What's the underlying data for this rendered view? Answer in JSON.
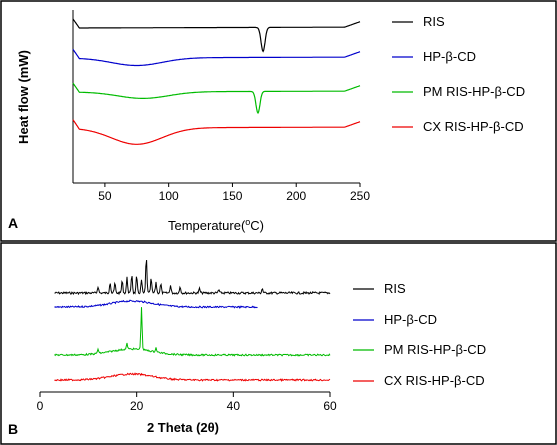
{
  "chart_data": [
    {
      "panel": "A",
      "type": "line",
      "xlabel_text": "Temperature(",
      "xlabel_sup": "o",
      "xlabel_unit": "C)",
      "ylabel": "Heat flow (mW)",
      "xlim": [
        25,
        250
      ],
      "xticks": [
        50,
        100,
        150,
        200,
        250
      ],
      "yticks_shown": false,
      "legend_position": "right",
      "series": [
        {
          "name": "RIS",
          "color": "#000000",
          "offset": 0,
          "features": [
            {
              "type": "endotherm-sharp",
              "x": 174,
              "depth": 1.0
            }
          ]
        },
        {
          "name": "HP-β-CD",
          "color": "#0000cc",
          "offset": 1,
          "features": [
            {
              "type": "endotherm-broad",
              "x": 75,
              "depth": 0.35
            }
          ]
        },
        {
          "name": "PM RIS-HP-β-CD",
          "color": "#00bb00",
          "offset": 2,
          "features": [
            {
              "type": "endotherm-broad",
              "x": 80,
              "depth": 0.3
            },
            {
              "type": "endotherm-sharp",
              "x": 170,
              "depth": 0.9
            }
          ]
        },
        {
          "name": "CX RIS-HP-β-CD",
          "color": "#ee0000",
          "offset": 3,
          "features": [
            {
              "type": "endotherm-broad",
              "x": 75,
              "depth": 0.75
            }
          ]
        }
      ]
    },
    {
      "panel": "B",
      "type": "line",
      "xlabel": "2 Theta (2θ)",
      "xlim": [
        0,
        60
      ],
      "xticks": [
        0,
        20,
        40,
        60
      ],
      "yticks_shown": false,
      "legend_position": "right",
      "series": [
        {
          "name": "RIS",
          "color": "#000000",
          "offset": 0,
          "x_range": [
            3,
            60
          ],
          "peaks": [
            [
              12,
              0.3
            ],
            [
              14.5,
              0.5
            ],
            [
              15.5,
              0.45
            ],
            [
              17,
              0.55
            ],
            [
              18,
              0.7
            ],
            [
              19,
              0.85
            ],
            [
              20,
              0.75
            ],
            [
              21,
              0.6
            ],
            [
              22,
              1.6
            ],
            [
              23,
              0.65
            ],
            [
              24,
              0.5
            ],
            [
              25,
              0.4
            ],
            [
              27,
              0.35
            ],
            [
              29,
              0.3
            ],
            [
              33,
              0.2
            ],
            [
              37,
              0.15
            ],
            [
              46,
              0.2
            ]
          ]
        },
        {
          "name": "HP-β-CD",
          "color": "#0000cc",
          "offset": 1,
          "x_range": [
            3,
            45
          ],
          "peaks": []
        },
        {
          "name": "PM RIS-HP-β-CD",
          "color": "#00bb00",
          "offset": 2,
          "x_range": [
            3,
            60
          ],
          "peaks": [
            [
              12,
              0.2
            ],
            [
              18,
              0.25
            ],
            [
              21,
              1.9
            ],
            [
              24,
              0.2
            ]
          ]
        },
        {
          "name": "CX RIS-HP-β-CD",
          "color": "#ee0000",
          "offset": 3,
          "x_range": [
            3,
            60
          ],
          "peaks": []
        }
      ]
    }
  ],
  "panel_letters": [
    "A",
    "B"
  ]
}
